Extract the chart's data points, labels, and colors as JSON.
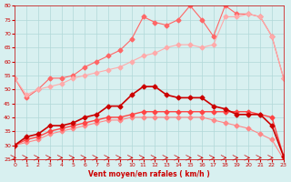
{
  "x": [
    0,
    1,
    2,
    3,
    4,
    5,
    6,
    7,
    8,
    9,
    10,
    11,
    12,
    13,
    14,
    15,
    16,
    17,
    18,
    19,
    20,
    21,
    22,
    23
  ],
  "line1": [
    30,
    33,
    34,
    37,
    37,
    38,
    40,
    41,
    44,
    44,
    48,
    51,
    51,
    48,
    47,
    47,
    47,
    44,
    43,
    41,
    41,
    41,
    37,
    26
  ],
  "line2": [
    30,
    32,
    33,
    35,
    36,
    37,
    38,
    39,
    40,
    40,
    41,
    42,
    42,
    42,
    42,
    42,
    42,
    42,
    42,
    42,
    42,
    41,
    40,
    26
  ],
  "line3": [
    30,
    31,
    32,
    34,
    35,
    36,
    37,
    38,
    39,
    39,
    40,
    40,
    40,
    40,
    40,
    40,
    40,
    39,
    38,
    37,
    36,
    34,
    32,
    25
  ],
  "line4": [
    54,
    48,
    50,
    51,
    52,
    54,
    55,
    56,
    57,
    58,
    60,
    62,
    63,
    65,
    66,
    66,
    65,
    66,
    76,
    76,
    77,
    76,
    69,
    54
  ],
  "line5": [
    54,
    47,
    50,
    54,
    54,
    55,
    58,
    60,
    62,
    64,
    68,
    76,
    74,
    73,
    75,
    80,
    75,
    69,
    80,
    77,
    77,
    76,
    69,
    54
  ],
  "line1_color": "#cc0000",
  "line2_color": "#ff4444",
  "line3_color": "#ff8888",
  "line4_color": "#ffaaaa",
  "line5_color": "#ff6666",
  "bg_color": "#d8f0f0",
  "grid_color": "#b0d8d8",
  "axis_label_color": "#cc0000",
  "xlabel": "Vent moyen/en rafales ( km/h )",
  "ylabel": "",
  "ylim": [
    25,
    80
  ],
  "xlim": [
    0,
    23
  ],
  "yticks": [
    25,
    30,
    35,
    40,
    45,
    50,
    55,
    60,
    65,
    70,
    75,
    80
  ]
}
